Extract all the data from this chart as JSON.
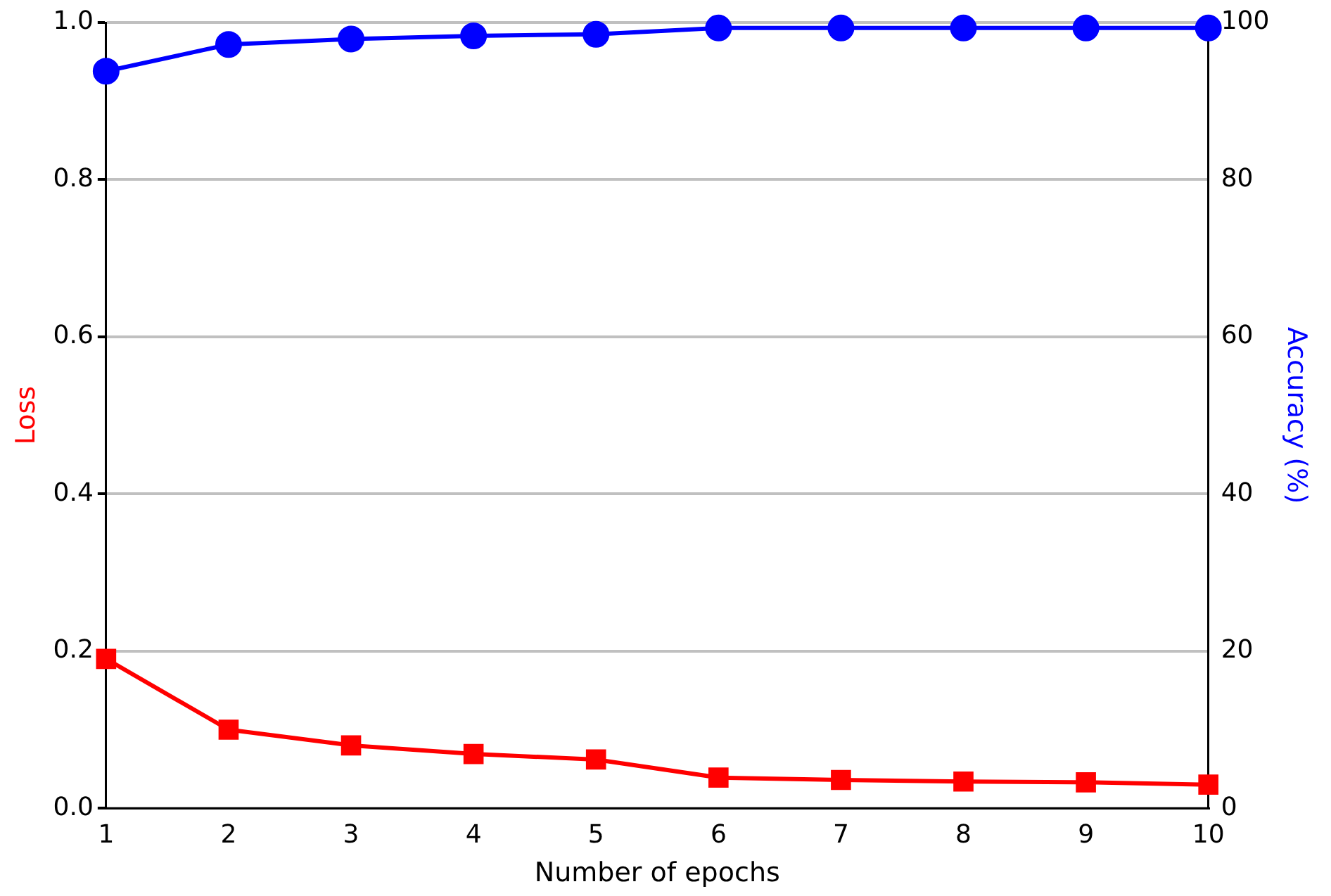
{
  "chart_data": {
    "type": "line",
    "xlabel": "Number of epochs",
    "ylabel": "Loss",
    "y2label": "Accuracy (%)",
    "x": [
      1,
      2,
      3,
      4,
      5,
      6,
      7,
      8,
      9,
      10
    ],
    "series": [
      {
        "name": null,
        "color": "#ff0000",
        "marker": "square",
        "values": [
          0.19,
          0.1,
          0.08,
          0.069,
          0.062,
          0.039,
          0.036,
          0.034,
          0.033,
          0.03
        ]
      },
      {
        "name": null,
        "color": "#0000ff",
        "marker": "circle",
        "axis": "y2",
        "values": [
          93.8,
          97.2,
          97.9,
          98.3,
          98.5,
          99.3,
          99.3,
          99.3,
          99.3,
          99.3
        ]
      }
    ],
    "xlim": [
      1,
      10
    ],
    "xticks": [
      1,
      2,
      3,
      4,
      5,
      6,
      7,
      8,
      9,
      10
    ],
    "ylim": [
      0,
      1
    ],
    "yticks": [
      {
        "value": 0,
        "label": "0.0"
      },
      {
        "value": 0.2,
        "label": "0.2"
      },
      {
        "value": 0.4,
        "label": "0.4"
      },
      {
        "value": 0.6,
        "label": "0.6"
      },
      {
        "value": 0.8,
        "label": "0.8"
      },
      {
        "value": 1,
        "label": "1.0"
      }
    ],
    "y2lim": [
      0,
      100
    ],
    "y2ticks": [
      0,
      20,
      40,
      60,
      80,
      100
    ],
    "grid": "y",
    "legend": false
  }
}
